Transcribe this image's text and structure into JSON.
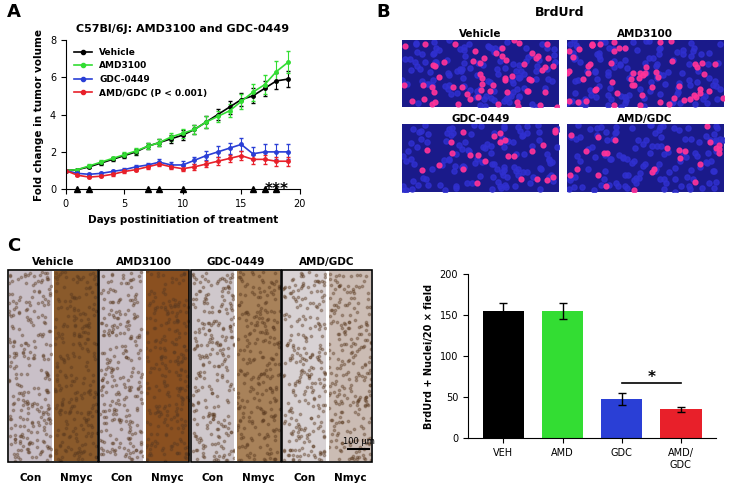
{
  "chart_data": [
    {
      "type": "line",
      "title": "C57Bl/6J: AMD3100 and GDC-0449",
      "x_label": "Days postinitiation of treatment",
      "y_label": "Fold change in tumor volume",
      "x": [
        0,
        1,
        2,
        3,
        4,
        5,
        6,
        7,
        8,
        9,
        10,
        11,
        12,
        13,
        14,
        15,
        16,
        17,
        18,
        19
      ],
      "series": [
        {
          "name": "Vehicle",
          "color": "#000000",
          "values": [
            1.0,
            1.05,
            1.2,
            1.4,
            1.6,
            1.8,
            2.0,
            2.3,
            2.5,
            2.7,
            2.9,
            3.2,
            3.6,
            4.0,
            4.4,
            4.8,
            5.0,
            5.4,
            5.8,
            5.9
          ],
          "errors": [
            0.02,
            0.05,
            0.08,
            0.1,
            0.1,
            0.12,
            0.15,
            0.15,
            0.2,
            0.2,
            0.25,
            0.25,
            0.3,
            0.3,
            0.35,
            0.35,
            0.4,
            0.4,
            0.45,
            0.45
          ]
        },
        {
          "name": "AMD3100",
          "color": "#33dd33",
          "values": [
            1.0,
            1.05,
            1.25,
            1.45,
            1.65,
            1.85,
            2.05,
            2.3,
            2.5,
            2.8,
            3.0,
            3.2,
            3.6,
            3.9,
            4.2,
            4.7,
            5.2,
            5.6,
            6.3,
            6.8
          ],
          "errors": [
            0.02,
            0.05,
            0.08,
            0.1,
            0.1,
            0.12,
            0.15,
            0.15,
            0.2,
            0.2,
            0.25,
            0.25,
            0.3,
            0.3,
            0.35,
            0.4,
            0.45,
            0.5,
            0.55,
            0.6
          ]
        },
        {
          "name": "GDC-0449",
          "color": "#2a3fd6",
          "values": [
            1.0,
            0.85,
            0.8,
            0.85,
            0.95,
            1.05,
            1.2,
            1.3,
            1.45,
            1.3,
            1.3,
            1.55,
            1.8,
            2.0,
            2.2,
            2.4,
            1.9,
            2.0,
            2.0,
            2.0
          ],
          "errors": [
            0.02,
            0.05,
            0.05,
            0.08,
            0.1,
            0.1,
            0.12,
            0.12,
            0.15,
            0.15,
            0.2,
            0.2,
            0.25,
            0.3,
            0.3,
            0.35,
            0.35,
            0.4,
            0.4,
            0.4
          ]
        },
        {
          "name": "AMD/GDC (P < 0.001)",
          "color": "#e8202a",
          "values": [
            1.0,
            0.75,
            0.65,
            0.7,
            0.8,
            0.95,
            1.05,
            1.2,
            1.35,
            1.2,
            1.1,
            1.2,
            1.35,
            1.5,
            1.65,
            1.8,
            1.6,
            1.6,
            1.5,
            1.5
          ],
          "errors": [
            0.02,
            0.05,
            0.05,
            0.05,
            0.08,
            0.08,
            0.1,
            0.1,
            0.12,
            0.12,
            0.12,
            0.15,
            0.15,
            0.2,
            0.2,
            0.25,
            0.25,
            0.25,
            0.25,
            0.25
          ]
        }
      ],
      "treatment_days": [
        1,
        2,
        7,
        8,
        10,
        16,
        17,
        18
      ],
      "annotations": [
        "***"
      ],
      "xlim": [
        0,
        20
      ],
      "xticks": [
        0,
        5,
        10,
        15,
        20
      ],
      "ylim": [
        0,
        8
      ],
      "yticks": [
        0,
        2,
        4,
        6,
        8
      ],
      "legend": "upper left"
    },
    {
      "type": "bar",
      "y_label": "BrdUrd + Nuclei/20 × field",
      "categories": [
        "VEH",
        "AMD",
        "GDC",
        "AMD/\nGDC"
      ],
      "values": [
        155,
        155,
        48,
        35
      ],
      "errors": [
        10,
        10,
        7,
        3
      ],
      "colors": [
        "#000000",
        "#33dd33",
        "#2a3fd6",
        "#e8202a"
      ],
      "annotations": [
        "*"
      ],
      "ylim": [
        0,
        200
      ],
      "yticks": [
        0,
        50,
        100,
        150,
        200
      ]
    }
  ],
  "panel_labels": [
    "A",
    "B",
    "C"
  ],
  "image_panel_B": {
    "title": "BrdUrd",
    "labels": [
      "Vehicle",
      "AMD3100",
      "GDC-0449",
      "AMD/GDC"
    ]
  },
  "image_panel_C": {
    "groups": [
      "Vehicle",
      "AMD3100",
      "GDC-0449",
      "AMD/GDC"
    ],
    "sublabels": [
      "Con",
      "Nmyc"
    ],
    "scale_bar": "100 μm"
  }
}
